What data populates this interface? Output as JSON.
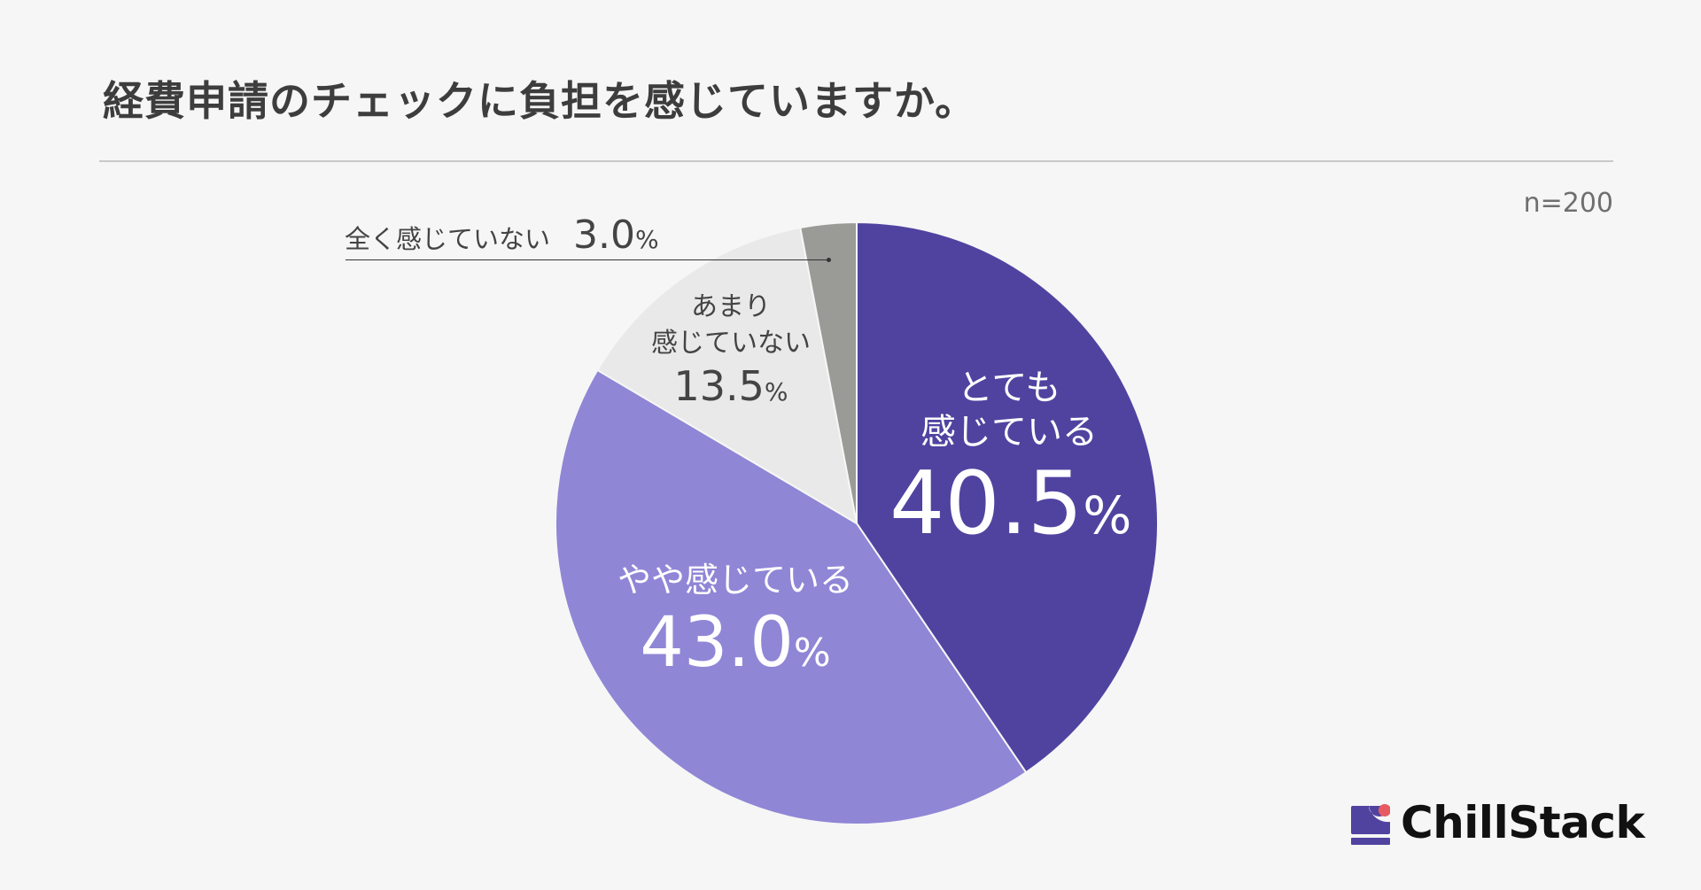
{
  "title": "経費申請のチェックに負担を感じていますか。",
  "sample_size": "n=200",
  "brand": {
    "name": "ChillStack",
    "logo_icon": "chillstack-logo-icon"
  },
  "colors": {
    "background": "#f6f6f6",
    "strongly": "#5043a0",
    "somewhat": "#8f86d6",
    "not_much": "#e9e9e9",
    "not_at_all": "#9a9b96"
  },
  "chart_data": {
    "type": "pie",
    "title": "経費申請のチェックに負担を感じていますか。",
    "start_angle": "12 o'clock",
    "direction": "clockwise",
    "slices": [
      {
        "label": "とても感じている",
        "label_lines": [
          "とても",
          "感じている"
        ],
        "value": 40.5,
        "value_text": "40.5",
        "color": "#5043a0"
      },
      {
        "label": "やや感じている",
        "label_lines": [
          "やや感じている"
        ],
        "value": 43.0,
        "value_text": "43.0",
        "color": "#8f86d6"
      },
      {
        "label": "あまり感じていない",
        "label_lines": [
          "あまり",
          "感じていない"
        ],
        "value": 13.5,
        "value_text": "13.5",
        "color": "#e9e9e9"
      },
      {
        "label": "全く感じていない",
        "label_lines": [
          "全く感じていない"
        ],
        "value": 3.0,
        "value_text": "3.0",
        "color": "#9a9b96"
      }
    ],
    "percent_sign": "%",
    "legend": "none (direct labels)",
    "annotation": "n=200"
  }
}
